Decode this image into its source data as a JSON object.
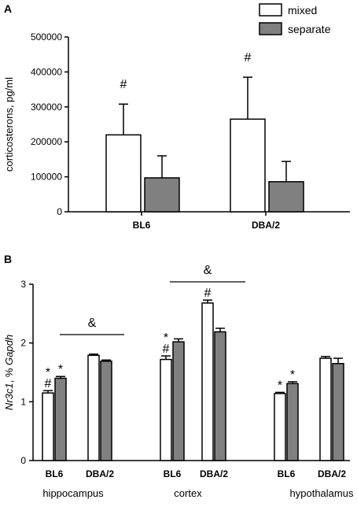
{
  "chart_data": [
    {
      "type": "bar",
      "panel": "A",
      "ylabel": "corticosterons, pg/ml",
      "ylim": [
        0,
        500000
      ],
      "yticks": [
        "0",
        "100000",
        "200000",
        "300000",
        "400000",
        "500000"
      ],
      "categories": [
        "BL6",
        "DBA/2"
      ],
      "legend": {
        "placement": "top-right",
        "entries": [
          "mixed",
          "separate"
        ]
      },
      "series": [
        {
          "name": "mixed",
          "color": "#ffffff",
          "values": [
            220000,
            265000
          ],
          "errors": [
            88000,
            120000
          ]
        },
        {
          "name": "separate",
          "color": "#808080",
          "values": [
            97000,
            86000
          ],
          "errors": [
            63000,
            58000
          ]
        }
      ],
      "annotations": [
        {
          "category": "BL6",
          "series": "mixed",
          "text": "#"
        },
        {
          "category": "DBA/2",
          "series": "mixed",
          "text": "#"
        }
      ]
    },
    {
      "type": "bar",
      "panel": "B",
      "ylabel_italic": "Nr3c1",
      "ylabel_mid": ", % ",
      "ylabel_italic2": "Gapdh",
      "ylim": [
        0,
        3
      ],
      "yticks": [
        "0",
        "1",
        "2",
        "3"
      ],
      "regions": [
        {
          "name": "hippocampus",
          "categories": [
            "BL6",
            "DBA/2"
          ],
          "mixed": [
            1.15,
            1.79
          ],
          "mixed_err": [
            0.04,
            0.02
          ],
          "separate": [
            1.4,
            1.69
          ],
          "separate_err": [
            0.03,
            0.02
          ],
          "marks": {
            "mixed_BL6": "*\n#",
            "separate_BL6": "*"
          },
          "bracket_text": "&"
        },
        {
          "name": "cortex",
          "categories": [
            "BL6",
            "DBA/2"
          ],
          "mixed": [
            1.72,
            2.68
          ],
          "mixed_err": [
            0.06,
            0.05
          ],
          "separate": [
            2.02,
            2.19
          ],
          "separate_err": [
            0.05,
            0.06
          ],
          "marks": {
            "mixed_BL6": "*\n#",
            "mixed_DBA": "#"
          },
          "bracket_text": "&"
        },
        {
          "name": "hypothalamus",
          "categories": [
            "BL6",
            "DBA/2"
          ],
          "mixed": [
            1.14,
            1.74
          ],
          "mixed_err": [
            0.02,
            0.03
          ],
          "separate": [
            1.31,
            1.65
          ],
          "separate_err": [
            0.03,
            0.09
          ],
          "marks": {
            "mixed_BL6": "*",
            "separate_BL6": "*"
          }
        }
      ]
    }
  ]
}
